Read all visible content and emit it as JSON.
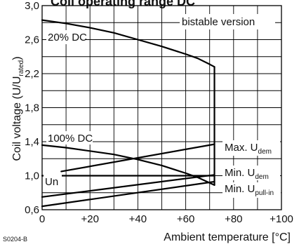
{
  "chart_data": {
    "type": "line",
    "title": "Coil operating range DC",
    "xlabel": "Ambient temperature [°C]",
    "ylabel_main": "Coil voltage (U/U",
    "ylabel_sub": "rated",
    "ylabel_close": ")",
    "xlim": [
      0,
      100
    ],
    "ylim": [
      0.6,
      3.0
    ],
    "x_ticks": [
      0,
      20,
      40,
      60,
      80,
      100
    ],
    "x_tick_labels": [
      "0",
      "+20",
      "+40",
      "+60",
      "+80",
      "+100"
    ],
    "y_ticks": [
      0.6,
      1.0,
      1.4,
      1.8,
      2.2,
      2.6,
      3.0
    ],
    "y_tick_labels": [
      "0,6",
      "1,0",
      "1,4",
      "1,8",
      "2,2",
      "2,6",
      "3,0"
    ],
    "grid": true,
    "series": [
      {
        "name": "20% DC",
        "kind": "curve",
        "x": [
          0,
          10,
          20,
          30,
          40,
          50,
          60,
          65,
          70,
          72
        ],
        "y": [
          2.83,
          2.79,
          2.74,
          2.68,
          2.6,
          2.52,
          2.43,
          2.38,
          2.31,
          2.28
        ]
      },
      {
        "name": "100% DC",
        "kind": "curve",
        "x": [
          0,
          10,
          20,
          30,
          40,
          50,
          60,
          65,
          72
        ],
        "y": [
          1.36,
          1.33,
          1.29,
          1.25,
          1.19,
          1.12,
          1.03,
          0.98,
          0.89
        ]
      },
      {
        "name": "Max. U_dem",
        "kind": "line",
        "x": [
          8,
          72
        ],
        "y": [
          1.05,
          1.37
        ]
      },
      {
        "name": "Min. U_dem",
        "kind": "line",
        "x": [
          0,
          72
        ],
        "y": [
          0.75,
          1.01
        ]
      },
      {
        "name": "Min. U_pull-in",
        "kind": "line",
        "x": [
          0,
          72
        ],
        "y": [
          0.64,
          0.93
        ]
      },
      {
        "name": "Un",
        "kind": "line",
        "x": [
          0,
          72
        ],
        "y": [
          1.0,
          1.0
        ]
      },
      {
        "name": "Vertical limit",
        "kind": "line",
        "x": [
          72,
          72
        ],
        "y": [
          0.89,
          2.28
        ]
      }
    ],
    "annotations": {
      "bistable": "bistable version",
      "dc20": "20% DC",
      "dc100": "100% DC",
      "un": "Un",
      "max_main": "Max. U",
      "max_sub": "dem",
      "min_main": "Min. U",
      "min_sub": "dem",
      "pull_main": "Min. U",
      "pull_sub": "pull-in"
    },
    "figure_code": "S0204-B"
  }
}
